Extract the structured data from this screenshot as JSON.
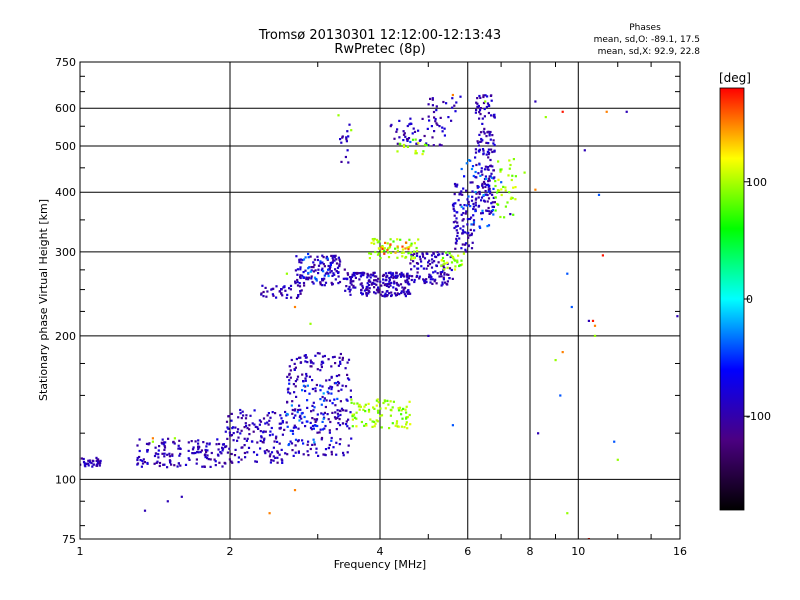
{
  "chart_data": {
    "type": "scatter",
    "title": "Tromsø 20130301 12:12:00-12:13:43",
    "subtitle": "RwPretec (8p)",
    "xlabel": "Frequency [MHz]",
    "ylabel": "Stationary phase Virtual Height [km]",
    "xscale": "log",
    "yscale": "log",
    "xlim": [
      1,
      16
    ],
    "ylim": [
      75,
      750
    ],
    "x_ticks": [
      1,
      2,
      4,
      6,
      8,
      10,
      16
    ],
    "x_tick_labels": [
      "1",
      "2",
      "4",
      "6",
      "8",
      "10",
      "16"
    ],
    "y_ticks": [
      75,
      100,
      200,
      300,
      400,
      500,
      600,
      750
    ],
    "y_tick_labels": [
      "75",
      "100",
      "200",
      "300",
      "400",
      "500",
      "600",
      "750"
    ],
    "grid": true,
    "stats": {
      "heading": "Phases",
      "line_o": "mean, sd,O: -89.1, 17.5",
      "line_x": "mean, sd,X:  92.9, 22.8"
    },
    "colorbar": {
      "label": "[deg]",
      "range": [
        -180,
        180
      ],
      "tick_values": [
        100,
        0,
        -100
      ],
      "tick_labels": [
        "100",
        "0",
        "-100"
      ],
      "colors": [
        "#000000",
        "#4b0082",
        "#0000ff",
        "#00ffff",
        "#00ff00",
        "#ffff00",
        "#ff0000"
      ]
    },
    "series": [
      {
        "phase_deg": -95,
        "clusters": [
          {
            "f": [
              1.0,
              1.1
            ],
            "h": [
              106,
              111
            ],
            "n": 35
          },
          {
            "f": [
              1.3,
              1.95
            ],
            "h": [
              106,
              122
            ],
            "n": 140
          },
          {
            "f": [
              1.95,
              2.6
            ],
            "h": [
              108,
              140
            ],
            "n": 150
          },
          {
            "f": [
              2.6,
              3.5
            ],
            "h": [
              112,
              185
            ],
            "n": 240
          },
          {
            "f": [
              2.3,
              2.8
            ],
            "h": [
              240,
              255
            ],
            "n": 40
          },
          {
            "f": [
              2.7,
              3.4
            ],
            "h": [
              255,
              295
            ],
            "n": 120
          },
          {
            "f": [
              3.4,
              4.6
            ],
            "h": [
              242,
              272
            ],
            "n": 220
          },
          {
            "f": [
              4.6,
              5.6
            ],
            "h": [
              255,
              300
            ],
            "n": 110
          },
          {
            "f": [
              5.6,
              6.2
            ],
            "h": [
              300,
              420
            ],
            "n": 90
          },
          {
            "f": [
              6.2,
              6.8
            ],
            "h": [
              360,
              640
            ],
            "n": 170
          },
          {
            "f": [
              3.3,
              3.5
            ],
            "h": [
              460,
              560
            ],
            "n": 14
          },
          {
            "f": [
              4.2,
              5.4
            ],
            "h": [
              500,
              580
            ],
            "n": 55
          },
          {
            "f": [
              5.0,
              5.8
            ],
            "h": [
              560,
              640
            ],
            "n": 20
          }
        ],
        "points": [
          [
            1.5,
            90
          ],
          [
            1.6,
            92
          ],
          [
            1.35,
            86
          ],
          [
            10.5,
            215
          ],
          [
            12.5,
            590
          ],
          [
            15.8,
            220
          ],
          [
            8.2,
            620
          ],
          [
            8.3,
            125
          ],
          [
            10.3,
            490
          ],
          [
            5.0,
            200
          ],
          [
            7.3,
            360
          ]
        ]
      },
      {
        "phase_deg": -40,
        "clusters": [
          {
            "f": [
              2.6,
              3.3
            ],
            "h": [
              118,
              160
            ],
            "n": 45
          },
          {
            "f": [
              2.8,
              3.2
            ],
            "h": [
              260,
              300
            ],
            "n": 20
          },
          {
            "f": [
              5.8,
              6.8
            ],
            "h": [
              330,
              470
            ],
            "n": 35
          }
        ],
        "points": [
          [
            9.5,
            270
          ],
          [
            9.7,
            230
          ],
          [
            9.2,
            150
          ],
          [
            11.8,
            120
          ],
          [
            11.0,
            395
          ],
          [
            5.6,
            130
          ],
          [
            4.6,
            510
          ],
          [
            7.0,
            420
          ]
        ]
      },
      {
        "phase_deg": 95,
        "clusters": [
          {
            "f": [
              3.5,
              4.6
            ],
            "h": [
              128,
              148
            ],
            "n": 90
          },
          {
            "f": [
              3.8,
              4.8
            ],
            "h": [
              290,
              320
            ],
            "n": 60
          },
          {
            "f": [
              5.3,
              5.9
            ],
            "h": [
              275,
              300
            ],
            "n": 30
          },
          {
            "f": [
              6.8,
              7.5
            ],
            "h": [
              350,
              480
            ],
            "n": 40
          },
          {
            "f": [
              4.3,
              5.0
            ],
            "h": [
              480,
              520
            ],
            "n": 16
          }
        ],
        "points": [
          [
            1.4,
            120
          ],
          [
            1.55,
            122
          ],
          [
            2.9,
            212
          ],
          [
            3.5,
            540
          ],
          [
            3.3,
            580
          ],
          [
            8.6,
            575
          ],
          [
            9.0,
            178
          ],
          [
            9.5,
            85
          ],
          [
            10.8,
            200
          ],
          [
            12.0,
            110
          ],
          [
            2.6,
            270
          ],
          [
            6.5,
            620
          ],
          [
            7.8,
            440
          ]
        ]
      },
      {
        "phase_deg": 150,
        "clusters": [
          {
            "f": [
              4.0,
              4.6
            ],
            "h": [
              295,
              315
            ],
            "n": 14
          }
        ],
        "points": [
          [
            2.7,
            95
          ],
          [
            1.4,
            122
          ],
          [
            2.4,
            85
          ],
          [
            5.6,
            640
          ],
          [
            8.2,
            405
          ],
          [
            9.3,
            185
          ],
          [
            10.8,
            210
          ],
          [
            11.4,
            590
          ],
          [
            2.7,
            230
          ]
        ]
      },
      {
        "phase_deg": 175,
        "clusters": [],
        "points": [
          [
            11.2,
            295
          ],
          [
            10.5,
            75
          ],
          [
            9.3,
            590
          ],
          [
            10.7,
            215
          ]
        ]
      }
    ]
  }
}
